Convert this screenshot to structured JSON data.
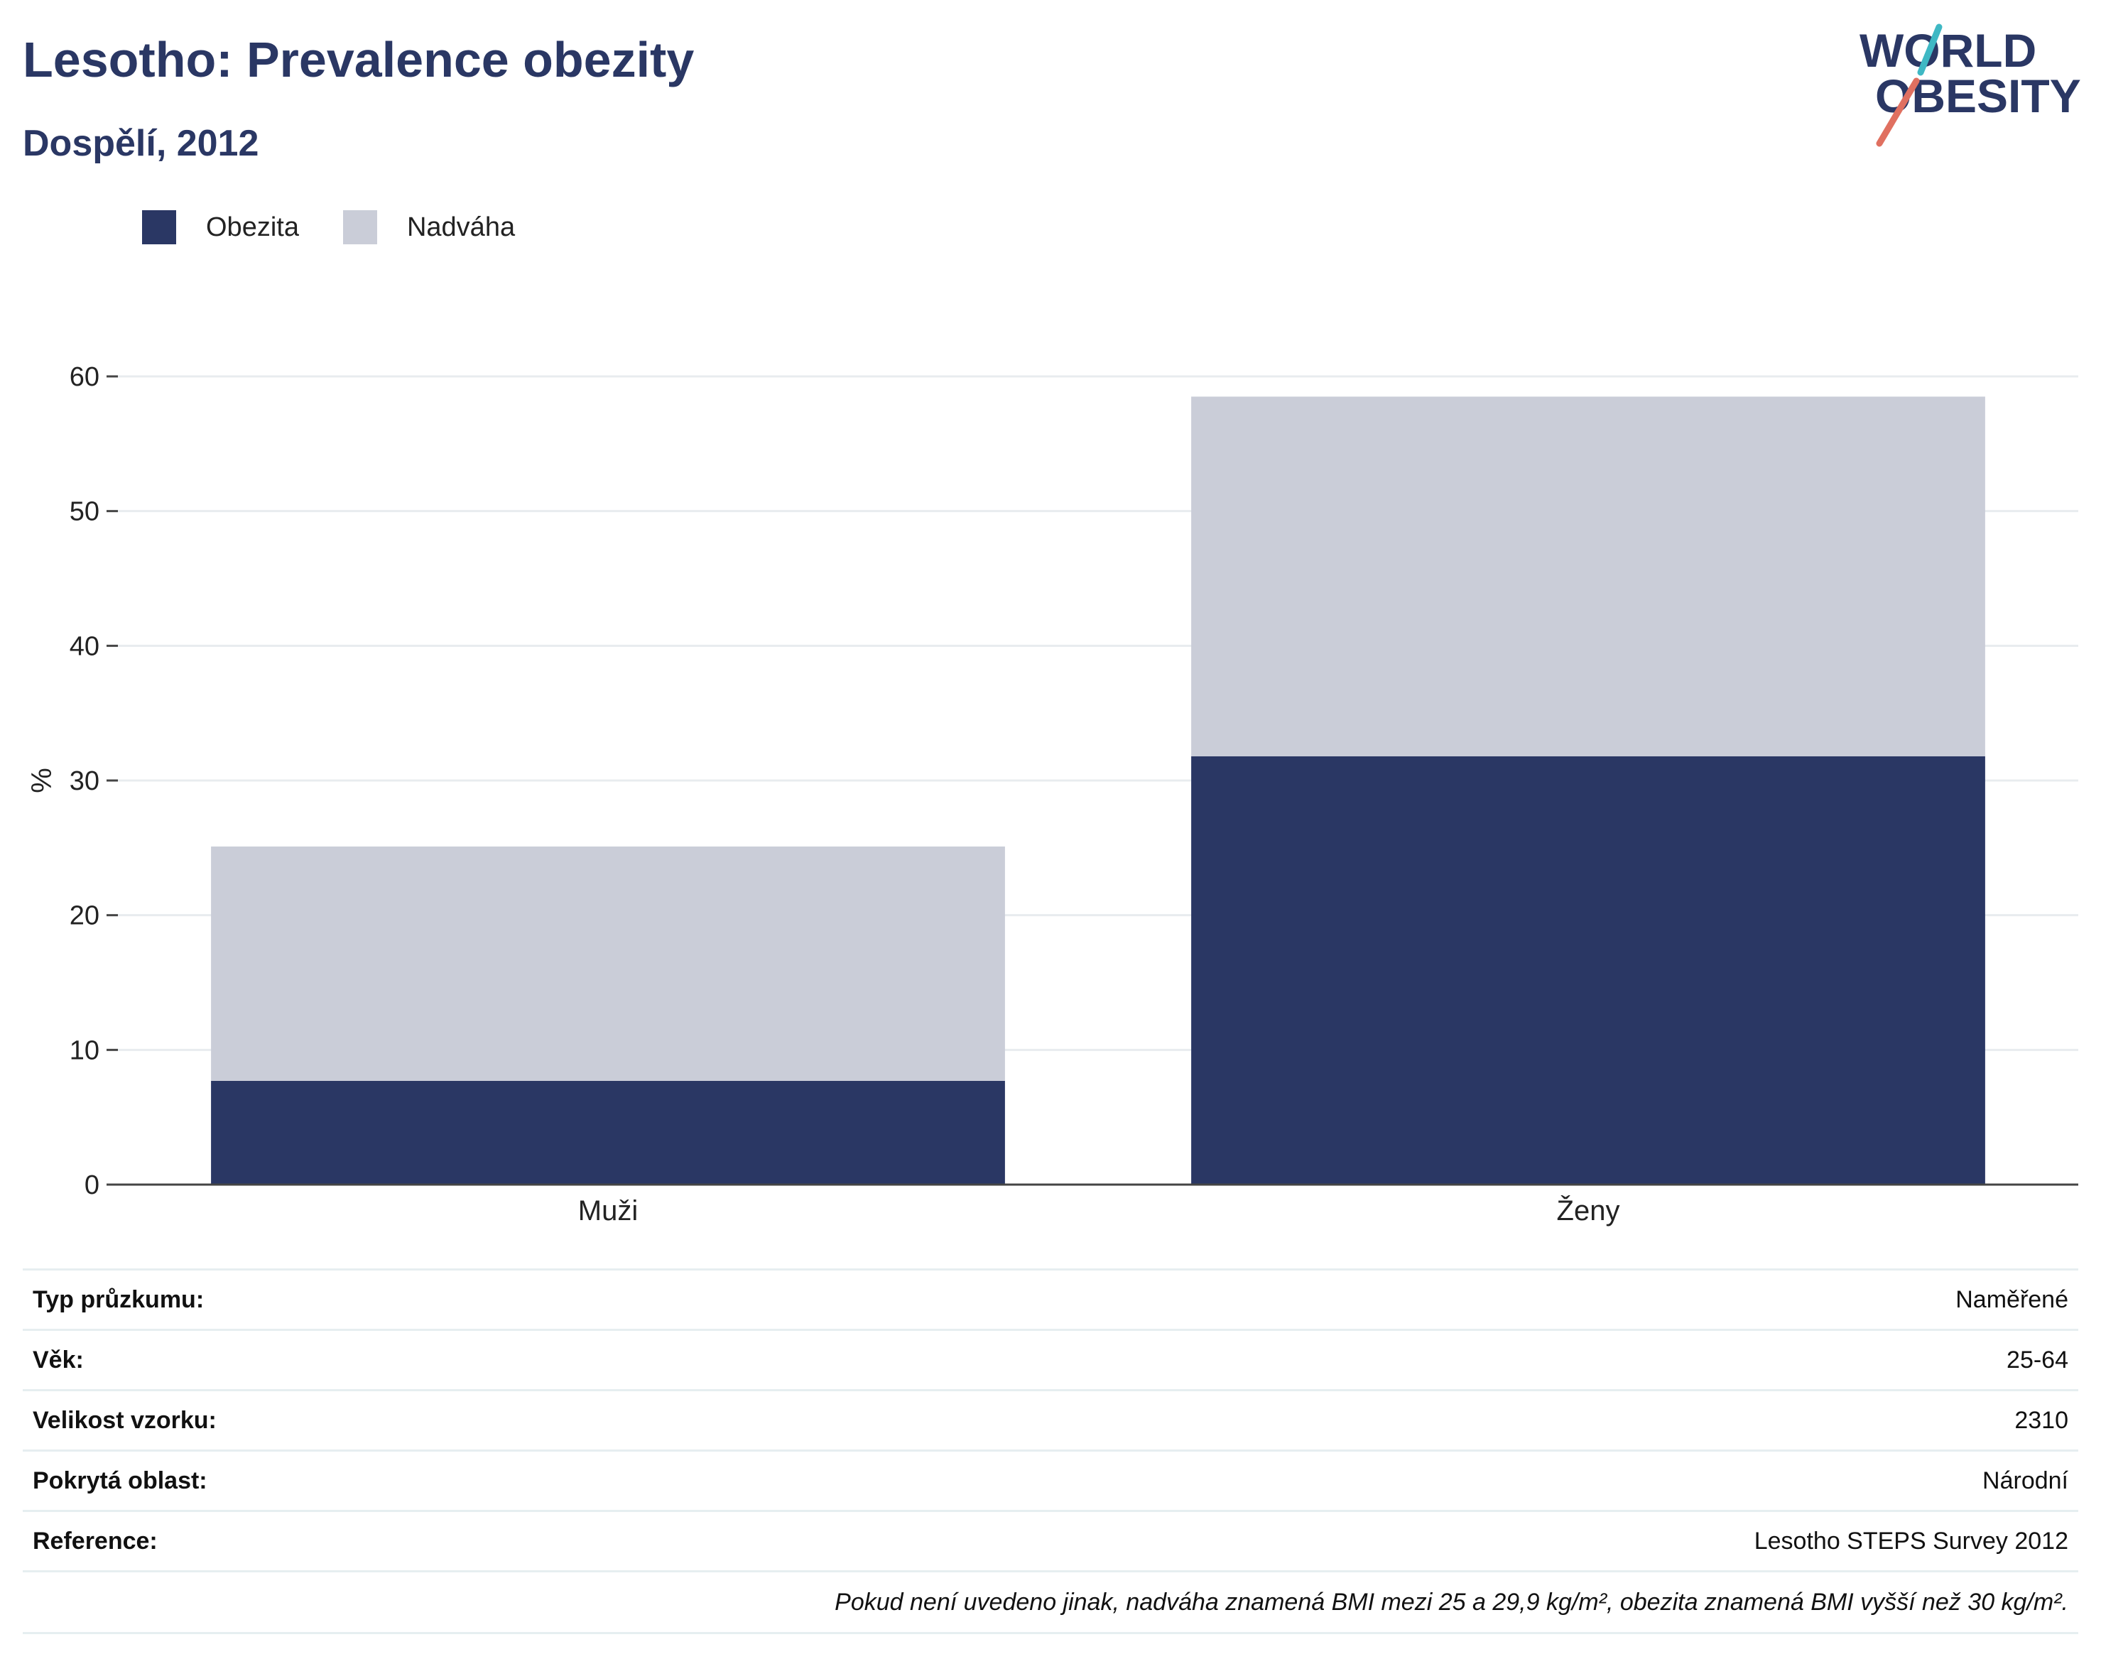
{
  "header": {
    "title": "Lesotho: Prevalence obezity",
    "subtitle": "Dospělí, 2012"
  },
  "logo": {
    "line1": "WORLD",
    "line2": "OBESITY",
    "colors": {
      "text": "#2a3764",
      "slash_top": "#3fb8c4",
      "slash_bottom": "#e07060"
    }
  },
  "legend": {
    "items": [
      {
        "label": "Obezita",
        "color": "#2a3764"
      },
      {
        "label": "Nadváha",
        "color": "#cacdd8"
      }
    ]
  },
  "chart_data": {
    "type": "bar",
    "stacked": true,
    "categories": [
      "Muži",
      "Ženy"
    ],
    "series": [
      {
        "name": "Obezita",
        "values": [
          7.7,
          31.8
        ],
        "color": "#2a3764"
      },
      {
        "name": "Nadváha",
        "values": [
          17.4,
          26.7
        ],
        "color": "#cacdd8"
      }
    ],
    "ylabel": "%",
    "ylim": [
      0,
      60
    ],
    "yticks": [
      0,
      10,
      20,
      30,
      40,
      50,
      60
    ],
    "grid": true,
    "legend_position": "top-left"
  },
  "info": {
    "rows": [
      {
        "key": "Typ průzkumu:",
        "value": "Naměřené"
      },
      {
        "key": "Věk:",
        "value": "25-64"
      },
      {
        "key": "Velikost vzorku:",
        "value": "2310"
      },
      {
        "key": "Pokrytá oblast:",
        "value": "Národní"
      },
      {
        "key": "Reference:",
        "value": "Lesotho STEPS Survey 2012"
      }
    ],
    "note": "Pokud není uvedeno jinak, nadváha znamená BMI mezi 25 a 29,9 kg/m², obezita znamená BMI vyšší než 30 kg/m²."
  }
}
